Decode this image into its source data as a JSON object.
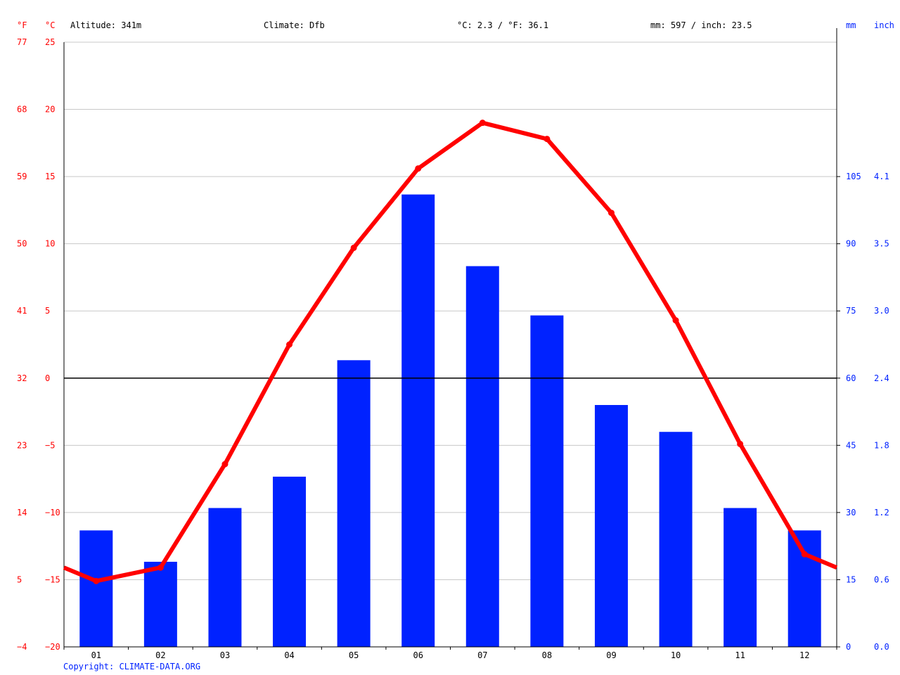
{
  "header": {
    "unit_f": "°F",
    "unit_c": "°C",
    "altitude": "Altitude: 341m",
    "climate": "Climate: Dfb",
    "temperature": "°C: 2.3 / °F: 36.1",
    "precipitation": "mm: 597 / inch: 23.5",
    "unit_mm": "mm",
    "unit_inch": "inch"
  },
  "footer": {
    "copyright": "Copyright: CLIMATE-DATA.ORG"
  },
  "colors": {
    "temperature": "#ff0000",
    "precipitation": "#0022ff",
    "zero_line": "#000000",
    "grid": "#c8c8c8"
  },
  "chart_data": {
    "type": "bar+line",
    "categories": [
      "01",
      "02",
      "03",
      "04",
      "05",
      "06",
      "07",
      "08",
      "09",
      "10",
      "11",
      "12"
    ],
    "series": [
      {
        "kind": "bar",
        "axis": "right",
        "unit": "mm",
        "values": [
          26,
          19,
          31,
          38,
          64,
          101,
          85,
          74,
          54,
          48,
          31,
          26
        ]
      },
      {
        "kind": "line",
        "axis": "left",
        "unit": "°C",
        "values": [
          -15.1,
          -14.1,
          -6.4,
          2.5,
          9.7,
          15.6,
          19.0,
          17.8,
          12.3,
          4.3,
          -4.9,
          -13.1
        ],
        "edge_start": -14.1,
        "edge_end": -14.1
      }
    ],
    "y_left": {
      "range": [
        -20,
        25
      ],
      "ticks_c": [
        "25",
        "20",
        "15",
        "10",
        "5",
        "0",
        "−5",
        "−10",
        "−15",
        "−20"
      ],
      "ticks_f": [
        "77",
        "68",
        "59",
        "50",
        "41",
        "32",
        "23",
        "14",
        "5",
        "−4"
      ]
    },
    "y_right": {
      "range": [
        0,
        135
      ],
      "ticks_mm": [
        "105",
        "90",
        "75",
        "60",
        "45",
        "30",
        "15",
        "0"
      ],
      "ticks_inch": [
        "4.1",
        "3.5",
        "3.0",
        "2.4",
        "1.8",
        "1.2",
        "0.6",
        "0.0"
      ],
      "tick_values_mm": [
        105,
        90,
        75,
        60,
        45,
        30,
        15,
        0
      ]
    },
    "grid": true
  }
}
